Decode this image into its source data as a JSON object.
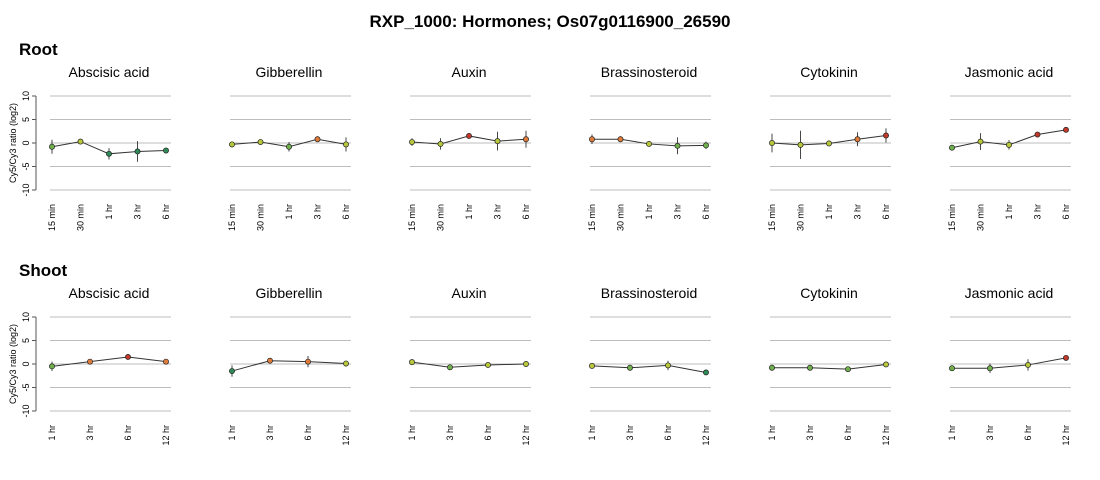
{
  "title": "RXP_1000: Hormones; Os07g0116900_26590",
  "ylabel": "Cy5/Cy3 ratio (log2)",
  "y_ticks": [
    10,
    5,
    0,
    -5,
    -10
  ],
  "ylim": [
    -10,
    10
  ],
  "grid": true,
  "chart_data": [
    {
      "type": "line",
      "section": "Root",
      "x": [
        "15 min",
        "30 min",
        "1 hr",
        "3 hr",
        "6 hr"
      ],
      "panels": [
        {
          "title": "Abscisic acid",
          "values": [
            -0.8,
            0.3,
            -2.3,
            -1.8,
            -1.6
          ],
          "err": [
            1.5,
            0.5,
            1.2,
            2.2,
            0.6
          ]
        },
        {
          "title": "Gibberellin",
          "values": [
            -0.3,
            0.2,
            -0.8,
            0.8,
            -0.3
          ],
          "err": [
            0.6,
            0.4,
            1.0,
            0.6,
            1.5
          ]
        },
        {
          "title": "Auxin",
          "values": [
            0.2,
            -0.2,
            1.5,
            0.4,
            0.8
          ],
          "err": [
            0.8,
            1.2,
            0.6,
            2.0,
            1.8
          ]
        },
        {
          "title": "Brassinosteroid",
          "values": [
            0.8,
            0.8,
            -0.2,
            -0.6,
            -0.5
          ],
          "err": [
            1.0,
            0.6,
            0.4,
            1.8,
            0.8
          ]
        },
        {
          "title": "Cytokinin",
          "values": [
            0.0,
            -0.4,
            -0.1,
            0.8,
            1.6
          ],
          "err": [
            2.0,
            3.0,
            0.6,
            1.5,
            1.5
          ]
        },
        {
          "title": "Jasmonic acid",
          "values": [
            -1.0,
            0.3,
            -0.4,
            1.8,
            2.8
          ],
          "err": [
            0.5,
            1.8,
            1.0,
            0.5,
            0.6
          ]
        }
      ]
    },
    {
      "type": "line",
      "section": "Shoot",
      "x": [
        "1 hr",
        "3 hr",
        "6 hr",
        "12 hr"
      ],
      "panels": [
        {
          "title": "Abscisic acid",
          "values": [
            -0.5,
            0.5,
            1.5,
            0.5
          ],
          "err": [
            1.0,
            0.4,
            0.3,
            0.4
          ]
        },
        {
          "title": "Gibberellin",
          "values": [
            -1.5,
            0.7,
            0.5,
            0.1
          ],
          "err": [
            1.2,
            0.4,
            1.2,
            0.6
          ]
        },
        {
          "title": "Auxin",
          "values": [
            0.4,
            -0.7,
            -0.2,
            0.0
          ],
          "err": [
            0.5,
            0.4,
            0.3,
            0.2
          ]
        },
        {
          "title": "Brassinosteroid",
          "values": [
            -0.4,
            -0.8,
            -0.3,
            -1.8
          ],
          "err": [
            0.4,
            0.4,
            1.0,
            0.4
          ]
        },
        {
          "title": "Cytokinin",
          "values": [
            -0.8,
            -0.8,
            -1.1,
            -0.1
          ],
          "err": [
            0.4,
            0.4,
            0.3,
            0.4
          ]
        },
        {
          "title": "Jasmonic acid",
          "values": [
            -0.9,
            -0.9,
            -0.2,
            1.3
          ],
          "err": [
            0.4,
            1.0,
            1.2,
            0.4
          ]
        }
      ]
    }
  ]
}
